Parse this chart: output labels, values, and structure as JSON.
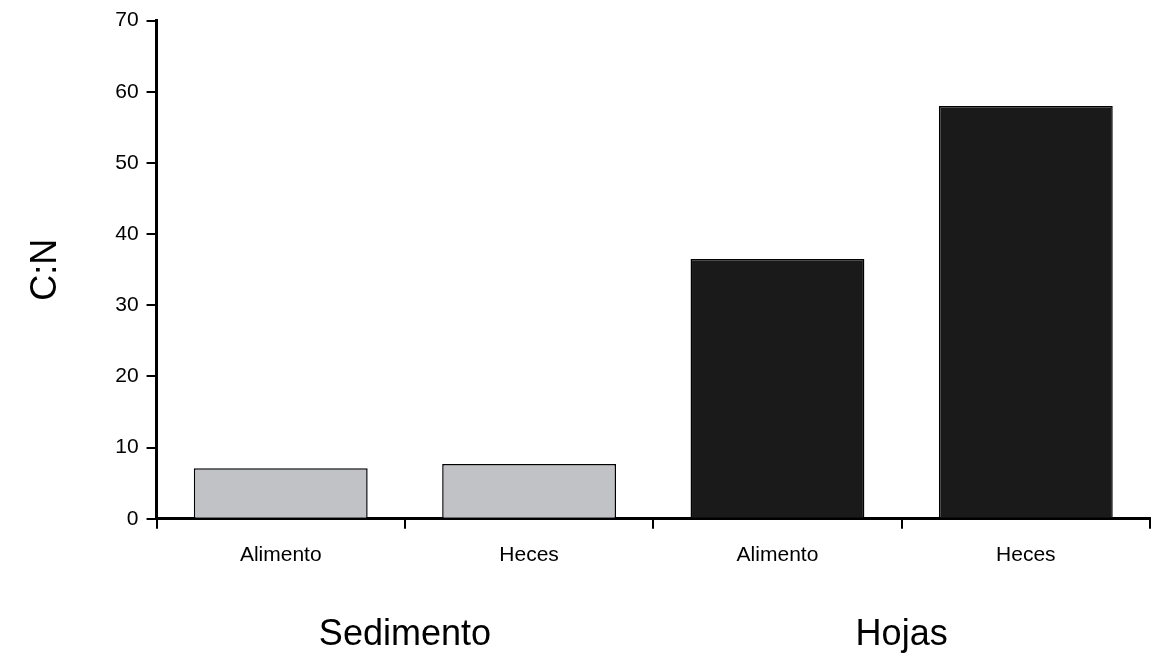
{
  "chart_data": {
    "type": "bar",
    "ylabel": "C:N",
    "categories": [
      "Alimento",
      "Heces",
      "Alimento",
      "Heces"
    ],
    "values": [
      7.1,
      7.7,
      36.5,
      58
    ],
    "colors": [
      "#c0c2c6",
      "#c0c2c6",
      "#1a1a1a",
      "#1a1a1a"
    ],
    "ylim": [
      0,
      70
    ],
    "yticks": [
      0,
      10,
      20,
      30,
      40,
      50,
      60,
      70
    ],
    "annotations": [
      "Sedimento",
      "Hojas"
    ],
    "grid": false,
    "legend": false
  }
}
